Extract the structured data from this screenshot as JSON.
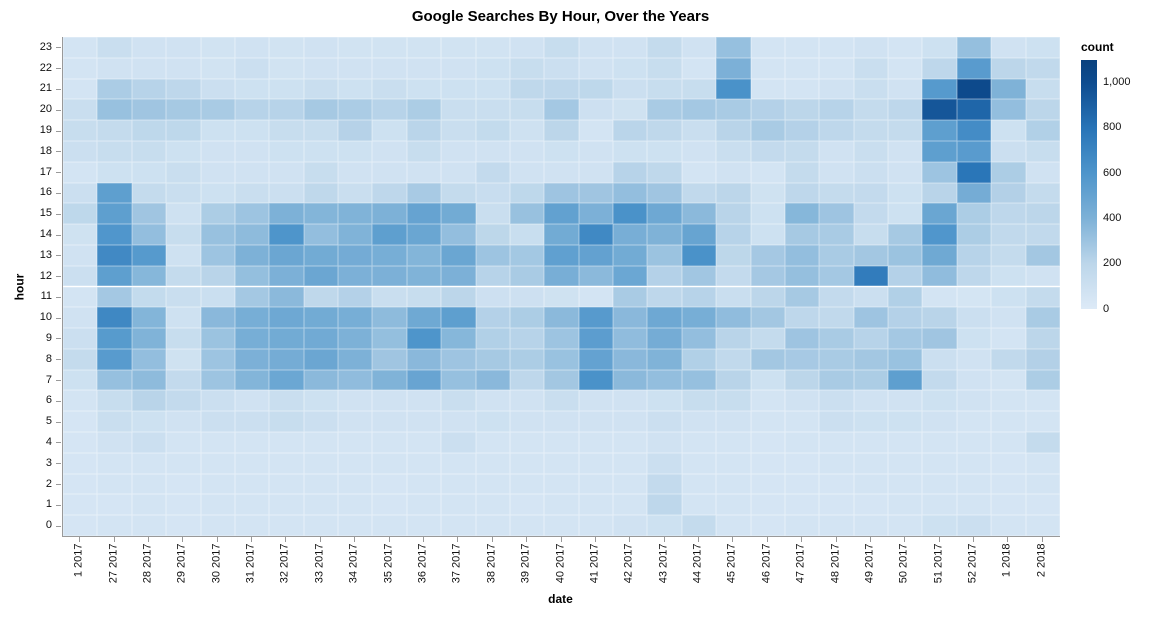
{
  "chart_data": {
    "type": "heatmap",
    "title": "Google Searches By Hour, Over the Years",
    "xlabel": "date",
    "ylabel": "hour",
    "x_categories": [
      "1 2017",
      "27 2017",
      "28 2017",
      "29 2017",
      "30 2017",
      "31 2017",
      "32 2017",
      "33 2017",
      "34 2017",
      "35 2017",
      "36 2017",
      "37 2017",
      "38 2017",
      "39 2017",
      "40 2017",
      "41 2017",
      "42 2017",
      "43 2017",
      "44 2017",
      "45 2017",
      "46 2017",
      "47 2017",
      "48 2017",
      "49 2017",
      "50 2017",
      "51 2017",
      "52 2017",
      "1 2018",
      "2 2018"
    ],
    "y_categories": [
      23,
      22,
      21,
      20,
      19,
      18,
      17,
      16,
      15,
      14,
      13,
      12,
      11,
      10,
      9,
      8,
      7,
      6,
      5,
      4,
      3,
      2,
      1,
      0
    ],
    "values": [
      [
        60,
        120,
        80,
        80,
        70,
        80,
        70,
        80,
        70,
        70,
        70,
        70,
        70,
        80,
        135,
        80,
        80,
        150,
        80,
        320,
        60,
        60,
        60,
        80,
        60,
        95,
        325,
        80,
        95
      ],
      [
        60,
        80,
        80,
        80,
        70,
        110,
        70,
        80,
        80,
        80,
        80,
        80,
        95,
        135,
        110,
        80,
        95,
        135,
        60,
        405,
        60,
        60,
        60,
        120,
        60,
        190,
        555,
        200,
        170
      ],
      [
        60,
        255,
        215,
        190,
        110,
        95,
        95,
        120,
        95,
        120,
        95,
        95,
        95,
        180,
        190,
        185,
        110,
        135,
        135,
        620,
        60,
        60,
        80,
        120,
        80,
        565,
        1020,
        395,
        135
      ],
      [
        120,
        315,
        290,
        270,
        260,
        215,
        215,
        270,
        255,
        215,
        250,
        120,
        120,
        135,
        275,
        100,
        85,
        260,
        275,
        260,
        225,
        200,
        215,
        150,
        190,
        950,
        870,
        330,
        200
      ],
      [
        135,
        150,
        185,
        185,
        95,
        95,
        135,
        135,
        220,
        95,
        205,
        120,
        155,
        90,
        200,
        60,
        205,
        180,
        120,
        210,
        260,
        225,
        190,
        150,
        150,
        530,
        655,
        95,
        235
      ],
      [
        110,
        135,
        135,
        95,
        80,
        80,
        95,
        95,
        95,
        80,
        135,
        80,
        80,
        80,
        95,
        80,
        95,
        95,
        80,
        120,
        160,
        150,
        80,
        120,
        80,
        530,
        555,
        110,
        135
      ],
      [
        60,
        95,
        95,
        120,
        80,
        80,
        80,
        135,
        80,
        80,
        80,
        80,
        160,
        80,
        80,
        80,
        215,
        180,
        60,
        80,
        60,
        150,
        80,
        110,
        80,
        300,
        790,
        250,
        80
      ],
      [
        110,
        530,
        150,
        120,
        95,
        120,
        110,
        180,
        120,
        190,
        265,
        150,
        130,
        185,
        295,
        290,
        330,
        290,
        170,
        200,
        85,
        190,
        150,
        160,
        95,
        210,
        435,
        230,
        150
      ],
      [
        185,
        530,
        290,
        90,
        250,
        300,
        400,
        380,
        390,
        400,
        500,
        445,
        120,
        315,
        515,
        405,
        620,
        465,
        355,
        210,
        95,
        370,
        295,
        160,
        95,
        480,
        250,
        190,
        200
      ],
      [
        85,
        590,
        330,
        135,
        315,
        345,
        600,
        330,
        390,
        530,
        480,
        330,
        195,
        125,
        445,
        675,
        420,
        395,
        495,
        215,
        95,
        270,
        260,
        135,
        270,
        590,
        250,
        170,
        170
      ],
      [
        80,
        670,
        565,
        90,
        300,
        400,
        478,
        445,
        440,
        425,
        380,
        480,
        300,
        278,
        525,
        512,
        445,
        305,
        620,
        195,
        273,
        330,
        260,
        280,
        305,
        460,
        215,
        150,
        280
      ],
      [
        110,
        530,
        370,
        152,
        210,
        327,
        405,
        478,
        405,
        405,
        390,
        405,
        215,
        260,
        420,
        355,
        475,
        225,
        285,
        160,
        273,
        325,
        275,
        750,
        225,
        340,
        190,
        95,
        80
      ],
      [
        60,
        275,
        155,
        120,
        115,
        275,
        355,
        180,
        225,
        120,
        135,
        200,
        100,
        100,
        85,
        60,
        260,
        190,
        215,
        120,
        200,
        270,
        160,
        110,
        235,
        60,
        55,
        95,
        150
      ],
      [
        80,
        680,
        380,
        90,
        360,
        425,
        465,
        445,
        425,
        345,
        460,
        530,
        225,
        250,
        355,
        562,
        360,
        465,
        425,
        340,
        280,
        190,
        170,
        295,
        225,
        210,
        110,
        80,
        260
      ],
      [
        110,
        560,
        390,
        135,
        305,
        425,
        445,
        450,
        400,
        327,
        600,
        370,
        235,
        215,
        300,
        540,
        340,
        435,
        330,
        210,
        150,
        295,
        260,
        215,
        275,
        290,
        95,
        60,
        200
      ],
      [
        150,
        558,
        330,
        85,
        300,
        405,
        435,
        478,
        400,
        290,
        360,
        295,
        270,
        250,
        310,
        505,
        360,
        390,
        235,
        170,
        280,
        268,
        260,
        280,
        310,
        110,
        80,
        170,
        230
      ],
      [
        95,
        320,
        345,
        160,
        300,
        380,
        475,
        355,
        340,
        390,
        490,
        320,
        360,
        190,
        280,
        620,
        355,
        330,
        320,
        210,
        95,
        200,
        260,
        250,
        530,
        160,
        80,
        60,
        250
      ],
      [
        60,
        135,
        210,
        160,
        110,
        80,
        120,
        95,
        80,
        80,
        80,
        120,
        80,
        80,
        120,
        80,
        80,
        95,
        135,
        135,
        60,
        80,
        110,
        80,
        80,
        95,
        80,
        60,
        60
      ],
      [
        50,
        120,
        95,
        80,
        110,
        110,
        135,
        110,
        80,
        80,
        80,
        80,
        95,
        80,
        80,
        80,
        80,
        110,
        80,
        80,
        60,
        60,
        110,
        95,
        95,
        80,
        60,
        60,
        60
      ],
      [
        50,
        80,
        110,
        60,
        60,
        60,
        60,
        60,
        60,
        60,
        60,
        110,
        60,
        60,
        60,
        60,
        60,
        80,
        60,
        60,
        50,
        60,
        60,
        60,
        60,
        60,
        60,
        60,
        150
      ],
      [
        50,
        60,
        60,
        60,
        60,
        60,
        60,
        60,
        60,
        60,
        60,
        60,
        60,
        60,
        60,
        60,
        60,
        110,
        60,
        60,
        50,
        50,
        60,
        60,
        60,
        60,
        60,
        50,
        60
      ],
      [
        50,
        60,
        60,
        50,
        60,
        60,
        60,
        60,
        60,
        50,
        60,
        60,
        60,
        60,
        60,
        60,
        60,
        160,
        60,
        60,
        50,
        50,
        50,
        60,
        60,
        60,
        60,
        50,
        60
      ],
      [
        50,
        50,
        60,
        50,
        60,
        60,
        60,
        60,
        60,
        50,
        60,
        60,
        60,
        50,
        60,
        60,
        60,
        190,
        60,
        60,
        50,
        50,
        50,
        50,
        60,
        60,
        60,
        50,
        50
      ],
      [
        50,
        60,
        60,
        50,
        60,
        60,
        60,
        60,
        60,
        60,
        60,
        60,
        60,
        60,
        60,
        60,
        80,
        95,
        150,
        60,
        50,
        60,
        60,
        60,
        60,
        95,
        110,
        60,
        60
      ]
    ],
    "legend": {
      "title": "count",
      "ticks": [
        {
          "label": "1,000",
          "value": 1000
        },
        {
          "label": "800",
          "value": 800
        },
        {
          "label": "600",
          "value": 600
        },
        {
          "label": "400",
          "value": 400
        },
        {
          "label": "200",
          "value": 200
        },
        {
          "label": "0",
          "value": 0
        }
      ],
      "domain_max": 1100,
      "position": "top-right"
    },
    "color_scale": {
      "scheme": "blues",
      "domain": [
        0,
        200,
        400,
        600,
        800,
        1000,
        1100
      ],
      "range": [
        "#ddeaf7",
        "#bcd6ea",
        "#7db1d7",
        "#4e95cb",
        "#2874b7",
        "#0e4c8f",
        "#09417e"
      ]
    },
    "grid": false
  },
  "layout_note": "heatmap of google search counts per hour (y, 0-23) per week-of-year (x)"
}
